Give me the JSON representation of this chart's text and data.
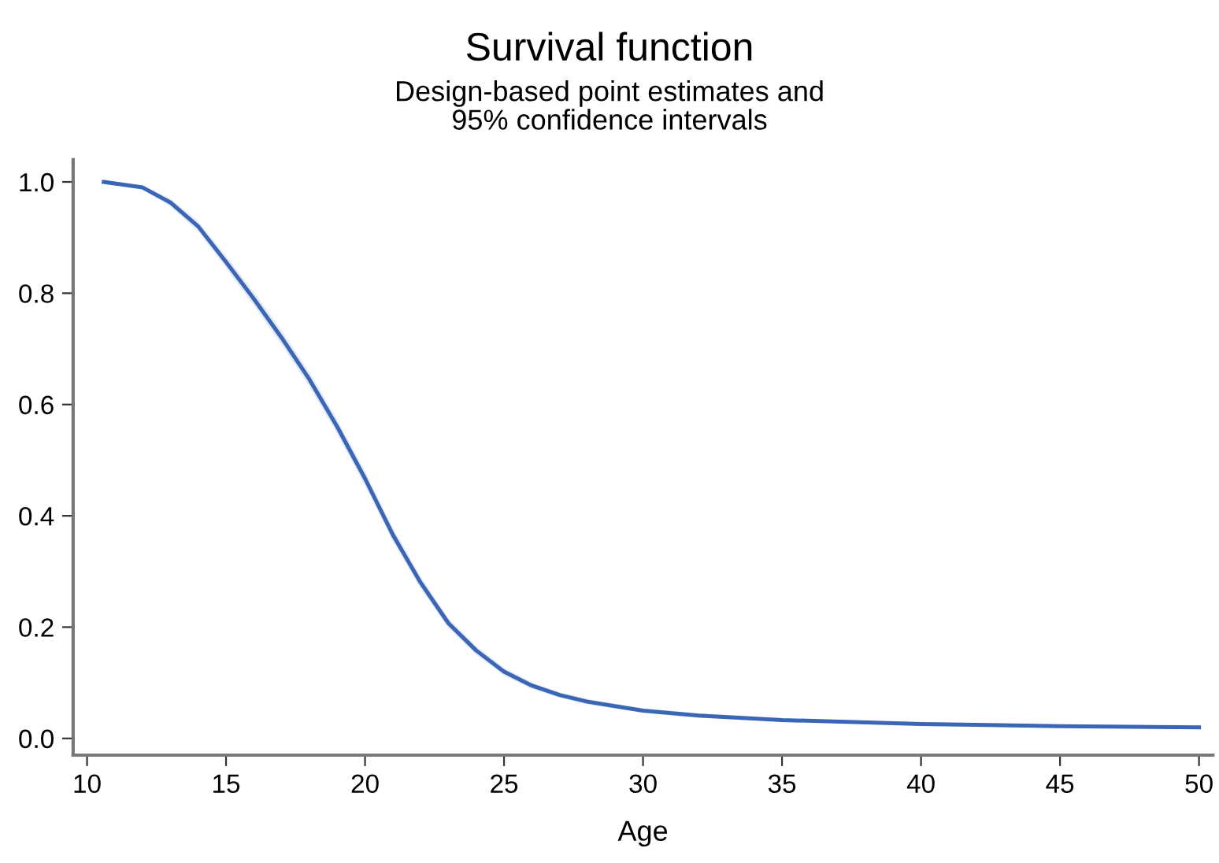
{
  "chart_data": {
    "type": "line",
    "title": "Survival function",
    "subtitle": "Design-based point estimates and\n95% confidence intervals",
    "xlabel": "Age",
    "x": [
      10.6,
      12,
      13,
      14,
      15,
      16,
      17,
      18,
      19,
      20,
      21,
      22,
      23,
      24,
      25,
      26,
      27,
      28,
      30,
      32,
      35,
      40,
      45,
      50
    ],
    "series": [
      {
        "color": "#3a66b5",
        "values": [
          1.0,
          0.99,
          0.963,
          0.92,
          0.856,
          0.79,
          0.72,
          0.645,
          0.56,
          0.467,
          0.366,
          0.28,
          0.207,
          0.158,
          0.12,
          0.095,
          0.078,
          0.066,
          0.05,
          0.041,
          0.033,
          0.026,
          0.022,
          0.02
        ],
        "lower": [
          1.0,
          0.986,
          0.956,
          0.911,
          0.845,
          0.778,
          0.707,
          0.632,
          0.547,
          0.454,
          0.354,
          0.269,
          0.198,
          0.15,
          0.113,
          0.089,
          0.073,
          0.061,
          0.046,
          0.037,
          0.03,
          0.023,
          0.019,
          0.017
        ],
        "upper": [
          1.0,
          0.994,
          0.97,
          0.929,
          0.867,
          0.802,
          0.733,
          0.658,
          0.573,
          0.48,
          0.378,
          0.291,
          0.216,
          0.166,
          0.127,
          0.101,
          0.083,
          0.071,
          0.054,
          0.045,
          0.036,
          0.029,
          0.025,
          0.023
        ]
      }
    ],
    "xlim": [
      9.5,
      50.5
    ],
    "ylim": [
      -0.03,
      1.04
    ],
    "xticks": [
      10,
      15,
      20,
      25,
      30,
      35,
      40,
      45,
      50
    ],
    "yticks": [
      {
        "value": 0,
        "label": "0.0"
      },
      {
        "value": 0.2,
        "label": "0.2"
      },
      {
        "value": 0.4,
        "label": "0.4"
      },
      {
        "value": 0.6,
        "label": "0.6"
      },
      {
        "value": 0.8,
        "label": "0.8"
      },
      {
        "value": 1,
        "label": "1.0"
      }
    ],
    "grid": false,
    "legend": false,
    "marker": "none",
    "line_style": "solid"
  }
}
